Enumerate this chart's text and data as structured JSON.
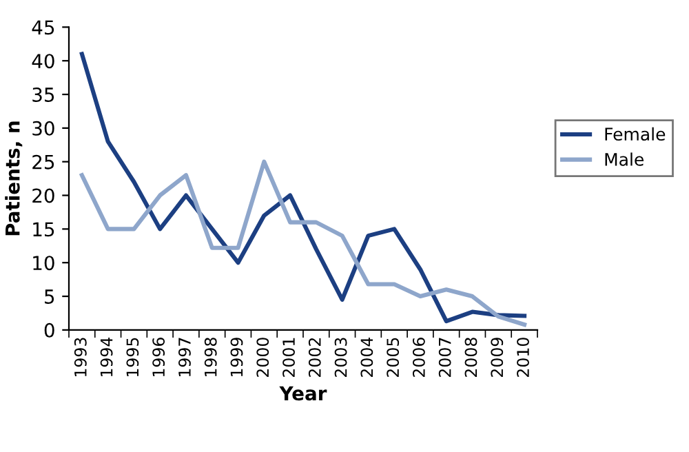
{
  "chart_data": {
    "type": "line",
    "xlabel": "Year",
    "ylabel": "Patients, n",
    "categories": [
      "1993",
      "1994",
      "1995",
      "1996",
      "1997",
      "1998",
      "1999",
      "2000",
      "2001",
      "2002",
      "2003",
      "2004",
      "2005",
      "2006",
      "2007",
      "2008",
      "2009",
      "2010"
    ],
    "series": [
      {
        "name": "Female",
        "color": "#1c3f82",
        "values": [
          41,
          28,
          22,
          15,
          20,
          15,
          10,
          17,
          20,
          12,
          4.5,
          14,
          15,
          9,
          1.3,
          2.7,
          2.2,
          2.1
        ]
      },
      {
        "name": "Male",
        "color": "#8ea6cb",
        "values": [
          23,
          15,
          15,
          20,
          23,
          12.2,
          12.2,
          25,
          16,
          16,
          14,
          6.8,
          6.8,
          5,
          6,
          5,
          2,
          0.8
        ]
      }
    ],
    "ylim": [
      0,
      45
    ],
    "yticks": [
      0,
      5,
      10,
      15,
      20,
      25,
      30,
      35,
      40,
      45
    ],
    "grid": false,
    "legend": "right",
    "marker": "none",
    "line_style": "solid"
  }
}
